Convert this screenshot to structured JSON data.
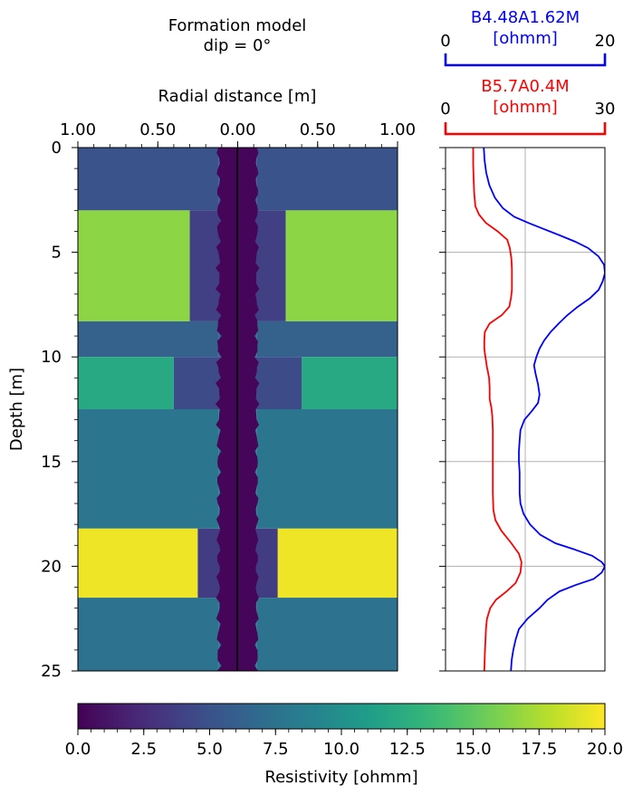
{
  "chart_data": [
    {
      "type": "heatmap",
      "title_lines": [
        "Formation model",
        "dip = 0°"
      ],
      "xlabel": "Radial distance [m]",
      "ylabel": "Depth [m]",
      "x_tick_labels": [
        "1.00",
        "0.50",
        "0.00",
        "0.50",
        "1.00"
      ],
      "x_ticks": [
        -1.0,
        -0.5,
        0.0,
        0.5,
        1.0
      ],
      "y_ticks": [
        0,
        5,
        10,
        15,
        20,
        25
      ],
      "xlim": [
        -1.0,
        1.0
      ],
      "ylim": [
        0,
        25
      ],
      "borehole_radius_m": 0.12,
      "borehole_resistivity_ohmm": 0.3,
      "layers": [
        {
          "top": 0.0,
          "bottom": 3.0,
          "rt": 5.2,
          "invasion_radius_m": 0.12,
          "rxo": 5.2
        },
        {
          "top": 3.0,
          "bottom": 8.3,
          "rt": 16.5,
          "invasion_radius_m": 0.3,
          "rxo": 3.8
        },
        {
          "top": 8.3,
          "bottom": 10.0,
          "rt": 6.2,
          "invasion_radius_m": 0.12,
          "rxo": 6.2
        },
        {
          "top": 10.0,
          "bottom": 12.5,
          "rt": 12.0,
          "invasion_radius_m": 0.4,
          "rxo": 4.5
        },
        {
          "top": 12.5,
          "bottom": 18.2,
          "rt": 7.8,
          "invasion_radius_m": 0.12,
          "rxo": 7.8
        },
        {
          "top": 18.2,
          "bottom": 21.5,
          "rt": 19.5,
          "invasion_radius_m": 0.25,
          "rxo": 3.5
        },
        {
          "top": 21.5,
          "bottom": 25.0,
          "rt": 7.5,
          "invasion_radius_m": 0.12,
          "rxo": 7.5
        }
      ]
    },
    {
      "type": "line",
      "ylim": [
        25,
        0
      ],
      "y_ticks": [
        0,
        5,
        10,
        15,
        20,
        25
      ],
      "grid": true,
      "series": [
        {
          "name": "B4.48A1.62M",
          "unit": "[ohmm]",
          "color": "#0000ff",
          "xlim": [
            0,
            20
          ],
          "x_tick_labels": [
            "0",
            "20"
          ],
          "points": [
            [
              4.8,
              0.0
            ],
            [
              4.9,
              0.6
            ],
            [
              5.1,
              1.2
            ],
            [
              5.5,
              1.8
            ],
            [
              6.2,
              2.4
            ],
            [
              7.2,
              2.9
            ],
            [
              8.6,
              3.3
            ],
            [
              10.4,
              3.6
            ],
            [
              12.4,
              3.9
            ],
            [
              14.4,
              4.2
            ],
            [
              16.3,
              4.5
            ],
            [
              17.9,
              4.8
            ],
            [
              19.2,
              5.2
            ],
            [
              19.9,
              5.6
            ],
            [
              20.0,
              6.0
            ],
            [
              19.7,
              6.4
            ],
            [
              19.2,
              6.8
            ],
            [
              18.1,
              7.2
            ],
            [
              16.6,
              7.6
            ],
            [
              15.3,
              8.0
            ],
            [
              14.2,
              8.4
            ],
            [
              13.2,
              8.8
            ],
            [
              12.4,
              9.2
            ],
            [
              11.8,
              9.6
            ],
            [
              11.4,
              10.0
            ],
            [
              11.1,
              10.4
            ],
            [
              11.3,
              10.8
            ],
            [
              11.6,
              11.3
            ],
            [
              11.8,
              11.8
            ],
            [
              11.6,
              12.2
            ],
            [
              10.8,
              12.6
            ],
            [
              9.9,
              13.0
            ],
            [
              9.4,
              13.5
            ],
            [
              9.3,
              14.0
            ],
            [
              9.2,
              14.5
            ],
            [
              9.2,
              15.0
            ],
            [
              9.3,
              15.5
            ],
            [
              9.3,
              16.0
            ],
            [
              9.3,
              16.5
            ],
            [
              9.4,
              17.0
            ],
            [
              9.8,
              17.5
            ],
            [
              10.6,
              18.0
            ],
            [
              11.9,
              18.5
            ],
            [
              13.8,
              18.9
            ],
            [
              16.2,
              19.2
            ],
            [
              18.4,
              19.5
            ],
            [
              19.6,
              19.8
            ],
            [
              20.0,
              20.0
            ],
            [
              19.6,
              20.3
            ],
            [
              18.6,
              20.6
            ],
            [
              16.3,
              20.9
            ],
            [
              14.3,
              21.2
            ],
            [
              12.8,
              21.6
            ],
            [
              11.8,
              22.0
            ],
            [
              10.3,
              22.5
            ],
            [
              9.2,
              23.0
            ],
            [
              8.8,
              23.5
            ],
            [
              8.5,
              24.0
            ],
            [
              8.3,
              24.5
            ],
            [
              8.2,
              25.0
            ]
          ]
        },
        {
          "name": "B5.7A0.4M",
          "unit": "[ohmm]",
          "color": "#ff0000",
          "xlim": [
            0,
            30
          ],
          "x_tick_labels": [
            "0",
            "30"
          ],
          "points": [
            [
              5.2,
              0.0
            ],
            [
              5.2,
              0.8
            ],
            [
              5.3,
              1.6
            ],
            [
              5.4,
              2.2
            ],
            [
              5.6,
              2.8
            ],
            [
              6.3,
              3.2
            ],
            [
              7.6,
              3.6
            ],
            [
              9.8,
              4.0
            ],
            [
              11.6,
              4.4
            ],
            [
              12.1,
              4.8
            ],
            [
              12.4,
              5.3
            ],
            [
              12.5,
              5.8
            ],
            [
              12.5,
              6.3
            ],
            [
              12.5,
              6.8
            ],
            [
              12.3,
              7.2
            ],
            [
              12.0,
              7.6
            ],
            [
              10.6,
              8.0
            ],
            [
              8.3,
              8.4
            ],
            [
              7.4,
              8.8
            ],
            [
              7.3,
              9.2
            ],
            [
              7.3,
              9.6
            ],
            [
              7.5,
              10.0
            ],
            [
              7.8,
              10.5
            ],
            [
              8.2,
              11.0
            ],
            [
              8.3,
              11.5
            ],
            [
              8.3,
              12.0
            ],
            [
              8.6,
              12.4
            ],
            [
              8.8,
              12.8
            ],
            [
              8.9,
              13.5
            ],
            [
              8.9,
              14.5
            ],
            [
              8.9,
              15.5
            ],
            [
              8.9,
              16.5
            ],
            [
              9.0,
              17.3
            ],
            [
              9.4,
              17.8
            ],
            [
              10.5,
              18.3
            ],
            [
              12.4,
              18.9
            ],
            [
              13.8,
              19.4
            ],
            [
              14.3,
              19.8
            ],
            [
              14.1,
              20.3
            ],
            [
              13.2,
              20.8
            ],
            [
              11.5,
              21.2
            ],
            [
              9.5,
              21.6
            ],
            [
              8.4,
              22.0
            ],
            [
              7.8,
              22.5
            ],
            [
              7.6,
              23.0
            ],
            [
              7.5,
              23.6
            ],
            [
              7.4,
              24.2
            ],
            [
              7.3,
              25.0
            ]
          ]
        }
      ]
    },
    {
      "type": "colorbar",
      "label": "Resistivity [ohmm]",
      "colormap": "viridis",
      "range": [
        0.0,
        20.0
      ],
      "tick_labels": [
        "0.0",
        "2.5",
        "5.0",
        "7.5",
        "10.0",
        "12.5",
        "15.0",
        "17.5",
        "20.0"
      ]
    }
  ]
}
